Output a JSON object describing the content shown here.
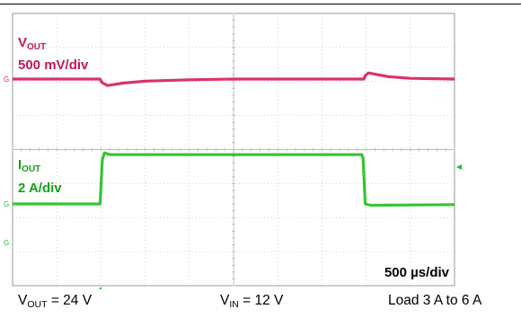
{
  "chart_data": {
    "type": "line",
    "timebase": "500 µs/div",
    "x_divisions": 10,
    "y_divisions": 8,
    "grid": true,
    "series": [
      {
        "name_main": "V",
        "name_sub": "OUT",
        "scale": "500 mV/div",
        "color": "#d81b60",
        "marker_color": "#d81b60",
        "marker_label": "G",
        "units": "div (relative to channel reference)",
        "points": [
          [
            0.0,
            0.0
          ],
          [
            1.98,
            0.0
          ],
          [
            2.02,
            -0.1
          ],
          [
            2.15,
            -0.19
          ],
          [
            2.5,
            -0.12
          ],
          [
            3.0,
            -0.06
          ],
          [
            4.0,
            -0.02
          ],
          [
            5.0,
            0.0
          ],
          [
            7.95,
            0.0
          ],
          [
            7.98,
            0.1
          ],
          [
            8.05,
            0.18
          ],
          [
            8.5,
            0.07
          ],
          [
            9.0,
            0.02
          ],
          [
            10.0,
            0.0
          ]
        ]
      },
      {
        "name_main": "I",
        "name_sub": "OUT",
        "scale": "2 A/div",
        "color": "#1fbf1f",
        "marker_color": "#1fbf1f",
        "marker_label": "G",
        "units": "div (relative to channel reference)",
        "points": [
          [
            0.0,
            0.0
          ],
          [
            1.98,
            0.0
          ],
          [
            2.03,
            1.3
          ],
          [
            2.08,
            1.5
          ],
          [
            2.2,
            1.45
          ],
          [
            4.0,
            1.45
          ],
          [
            7.9,
            1.45
          ],
          [
            7.93,
            1.35
          ],
          [
            7.98,
            0.0
          ],
          [
            8.1,
            -0.04
          ],
          [
            10.0,
            -0.02
          ]
        ]
      }
    ]
  },
  "caption": {
    "vout_main": "V",
    "vout_sub": "OUT",
    "vout_value": " = 24 V",
    "vin_main": "V",
    "vin_sub": "IN",
    "vin_value": " = 12 V",
    "load": "Load 3 A to 6 A"
  }
}
